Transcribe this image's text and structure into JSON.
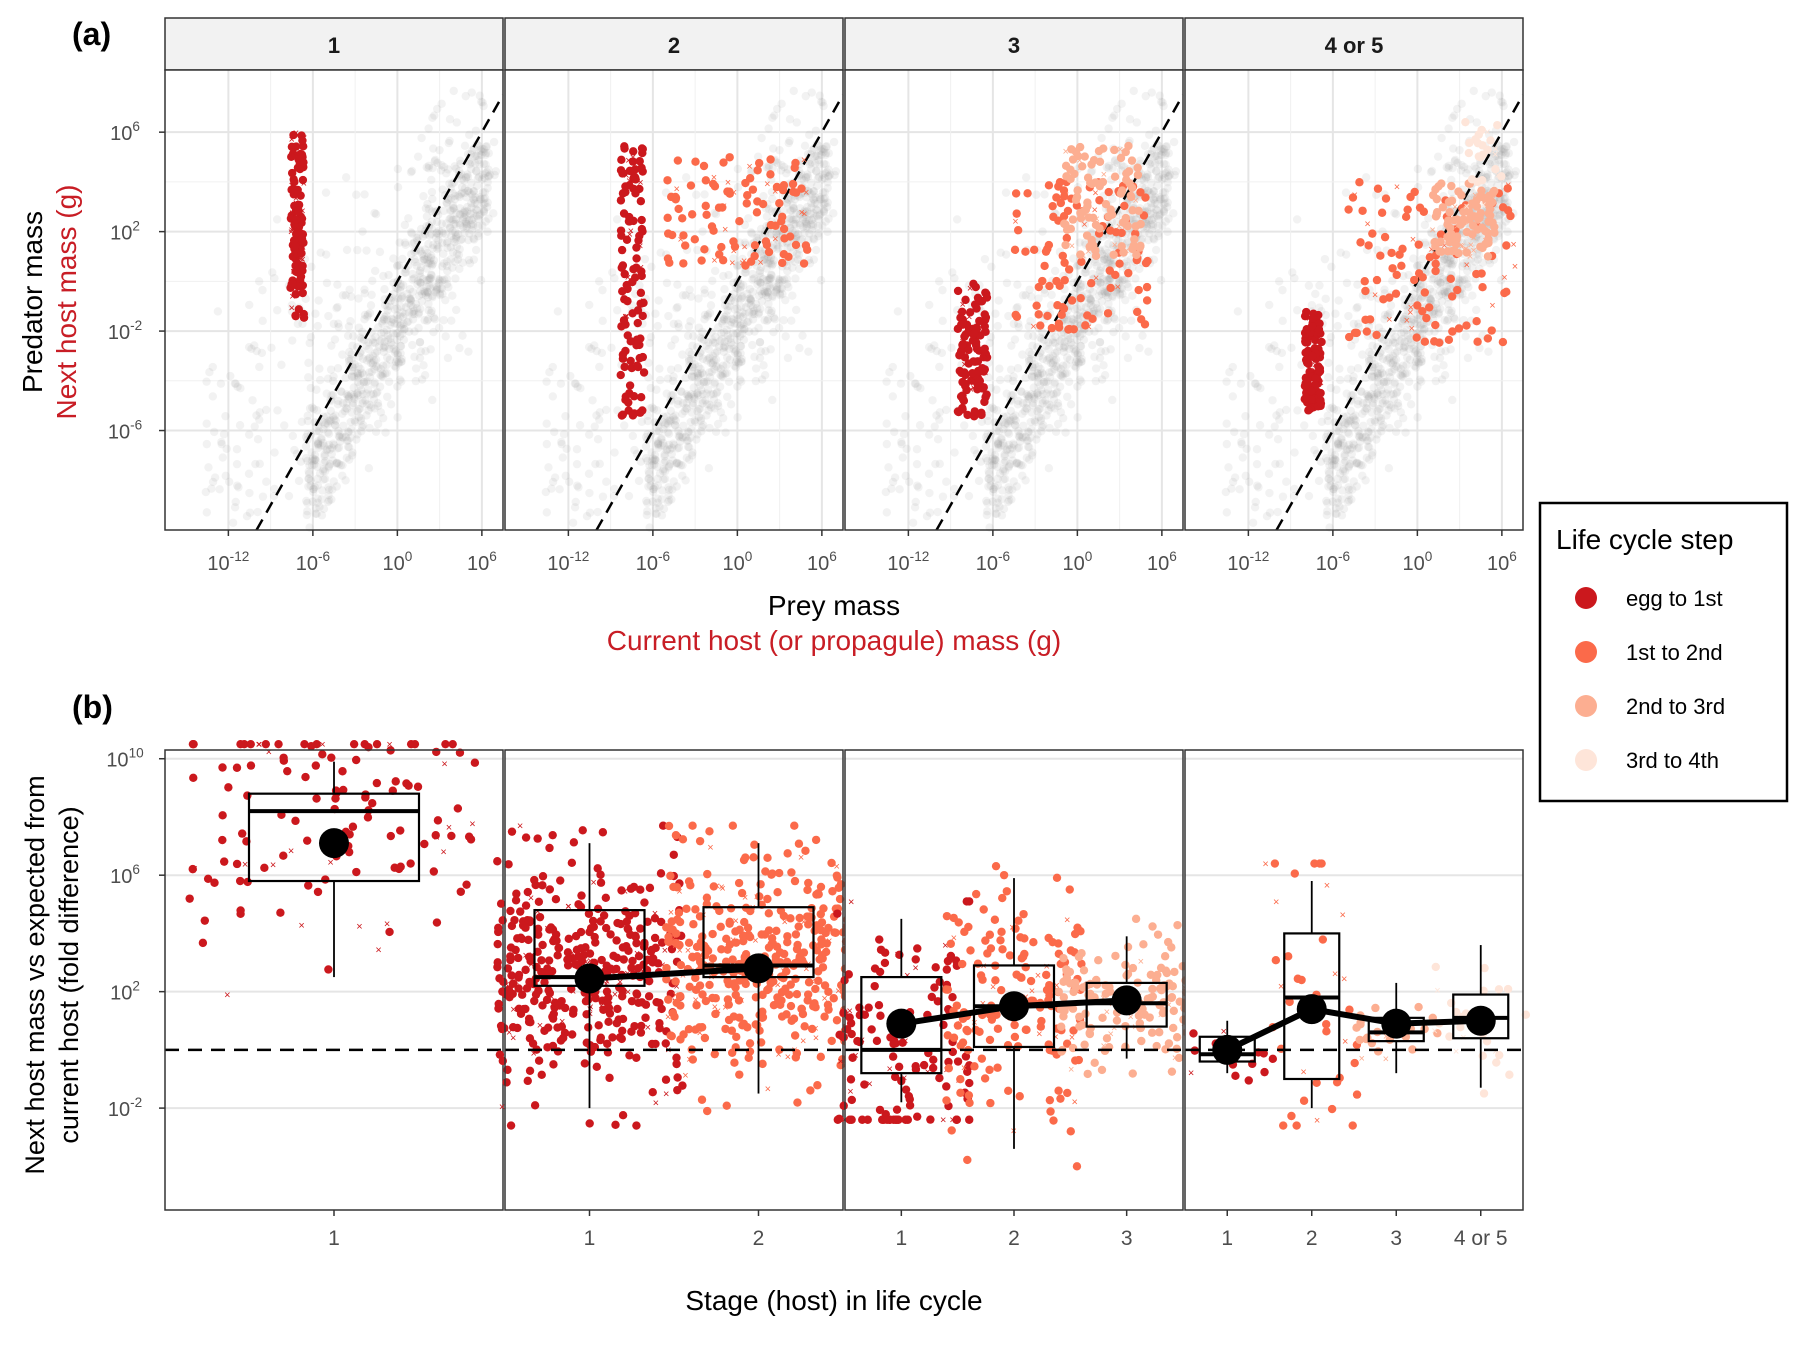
{
  "figure": {
    "panel_a_label": "(a)",
    "panel_b_label": "(b)",
    "ylabel_a_black": "Predator mass",
    "ylabel_a_red": "Next host mass (g)",
    "xlabel_a_black": "Prey mass",
    "xlabel_a_red": "Current host (or propagule) mass (g)",
    "ylabel_b_line1": "Next host mass vs expected from",
    "ylabel_b_line2": "current host (fold difference)",
    "xlabel_b": "Stage (host) in life cycle"
  },
  "legend": {
    "title": "Life cycle step",
    "position": "right",
    "items": [
      {
        "label": "egg to 1st",
        "color": "#cb181d"
      },
      {
        "label": "1st to 2nd",
        "color": "#fb6a4a"
      },
      {
        "label": "2nd to 3rd",
        "color": "#fcae91"
      },
      {
        "label": "3rd to 4th",
        "color": "#fee5d9"
      }
    ]
  },
  "colors": {
    "background_points": "#9e9e9e",
    "strip_bg": "#f2f2f2",
    "grid": "#e5e5e5",
    "red_label": "#c81d25"
  },
  "chart_data": [
    {
      "id": "a",
      "type": "scatter",
      "scale": "log10",
      "xlabel": "Prey mass / Current host (or propagule) mass (g)",
      "ylabel": "Predator mass / Next host mass (g)",
      "x_ticks": [
        "10^-12",
        "10^-6",
        "10^0",
        "10^6"
      ],
      "y_ticks": [
        "10^-6",
        "10^-2",
        "10^2",
        "10^6"
      ],
      "xlim_log10": [
        -16.5,
        7.5
      ],
      "ylim_log10": [
        -10,
        8.5
      ],
      "reference_line": "y = x (dashed)",
      "grid": true,
      "facets": [
        {
          "strip": "1",
          "clusters": [
            {
              "step": 0,
              "x_log10": [
                -7.6,
                -6.6
              ],
              "y_log10": [
                -1.5,
                6
              ]
            }
          ]
        },
        {
          "strip": "2",
          "clusters": [
            {
              "step": 0,
              "x_log10": [
                -8.3,
                -6.6
              ],
              "y_log10": [
                -5.5,
                5.8
              ]
            },
            {
              "step": 1,
              "x_log10": [
                -5,
                5
              ],
              "y_log10": [
                0.5,
                5
              ]
            }
          ]
        },
        {
          "strip": "3",
          "clusters": [
            {
              "step": 0,
              "x_log10": [
                -8.5,
                -6.4
              ],
              "y_log10": [
                -5.5,
                0
              ]
            },
            {
              "step": 1,
              "x_log10": [
                -4.5,
                5
              ],
              "y_log10": [
                -2,
                4
              ]
            },
            {
              "step": 2,
              "x_log10": [
                -1,
                4.5
              ],
              "y_log10": [
                1,
                5.5
              ]
            }
          ]
        },
        {
          "strip": "4 or 5",
          "clusters": [
            {
              "step": 0,
              "x_log10": [
                -8,
                -6.8
              ],
              "y_log10": [
                -5.2,
                -1.2
              ]
            },
            {
              "step": 1,
              "x_log10": [
                -5,
                7
              ],
              "y_log10": [
                -2.5,
                4
              ]
            },
            {
              "step": 2,
              "x_log10": [
                1,
                5.5
              ],
              "y_log10": [
                1,
                4
              ]
            },
            {
              "step": 3,
              "x_log10": [
                3,
                6
              ],
              "y_log10": [
                3,
                6.5
              ]
            }
          ]
        }
      ]
    },
    {
      "id": "b",
      "type": "box+scatter",
      "scale": "log10",
      "xlabel": "Stage (host) in life cycle",
      "ylabel": "Next host mass vs expected from current host (fold difference)",
      "y_ticks": [
        "10^-2",
        "10^2",
        "10^6",
        "10^10"
      ],
      "ylim_log10": [
        -5.5,
        10.3
      ],
      "reference_line": "y = 1 (dashed)",
      "grid": "horizontal",
      "facets": [
        {
          "strip": "1",
          "groups": [
            {
              "stage": "1",
              "step": 0,
              "q1": 5.8,
              "median": 8.2,
              "q3": 8.8,
              "wlo": 2.5,
              "whi": 9.9,
              "mean": 7.1,
              "n": 130
            }
          ]
        },
        {
          "strip": "2",
          "groups": [
            {
              "stage": "1",
              "step": 0,
              "q1": 2.2,
              "median": 2.5,
              "q3": 4.8,
              "wlo": -2,
              "whi": 7.1,
              "mean": 2.45,
              "n": 750
            },
            {
              "stage": "2",
              "step": 1,
              "q1": 2.5,
              "median": 2.9,
              "q3": 4.9,
              "wlo": -1.5,
              "whi": 7.1,
              "mean": 2.8,
              "n": 650
            }
          ]
        },
        {
          "strip": "3",
          "groups": [
            {
              "stage": "1",
              "step": 0,
              "q1": -0.8,
              "median": 0,
              "q3": 2.5,
              "wlo": -1.8,
              "whi": 4.5,
              "mean": 0.9,
              "n": 140
            },
            {
              "stage": "2",
              "step": 1,
              "q1": 0.1,
              "median": 1.5,
              "q3": 2.9,
              "wlo": -3.4,
              "whi": 5.9,
              "mean": 1.5,
              "n": 170
            },
            {
              "stage": "3",
              "step": 2,
              "q1": 0.8,
              "median": 1.6,
              "q3": 2.3,
              "wlo": -0.3,
              "whi": 3.9,
              "mean": 1.7,
              "n": 160
            }
          ]
        },
        {
          "strip": "4 or 5",
          "groups": [
            {
              "stage": "1",
              "step": 0,
              "q1": -0.4,
              "median": -0.15,
              "q3": 0.45,
              "wlo": -0.8,
              "whi": 1.0,
              "mean": 0.0,
              "n": 16
            },
            {
              "stage": "2",
              "step": 1,
              "q1": -1.0,
              "median": 1.8,
              "q3": 4.0,
              "wlo": -2.0,
              "whi": 5.8,
              "mean": 1.4,
              "n": 40
            },
            {
              "stage": "3",
              "step": 2,
              "q1": 0.3,
              "median": 0.6,
              "q3": 1.1,
              "wlo": -0.8,
              "whi": 2.3,
              "mean": 0.9,
              "n": 24
            },
            {
              "stage": "4 or 5",
              "step": 3,
              "q1": 0.4,
              "median": 1.1,
              "q3": 1.9,
              "wlo": -1.3,
              "whi": 3.6,
              "mean": 1.0,
              "n": 28
            }
          ]
        }
      ]
    }
  ]
}
